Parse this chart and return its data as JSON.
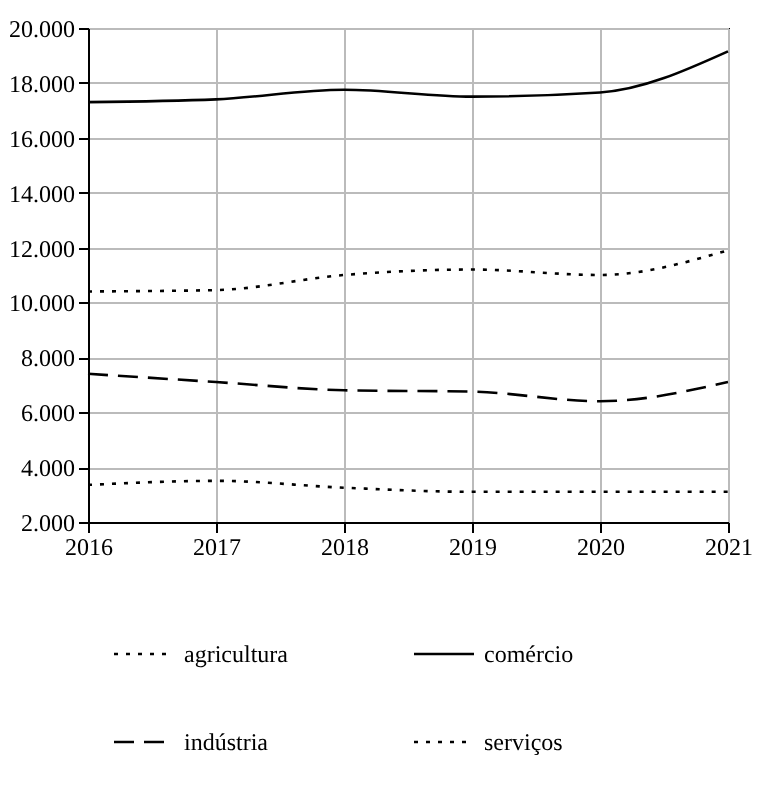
{
  "chart_data": {
    "type": "line",
    "x": [
      2016,
      2017,
      2018,
      2019,
      2020,
      2021
    ],
    "xlim": [
      2016,
      2021
    ],
    "xticks": [
      2016,
      2017,
      2018,
      2019,
      2020,
      2021
    ],
    "ylim": [
      2000,
      20000
    ],
    "yticks": [
      {
        "value": 2000,
        "label": "2.000"
      },
      {
        "value": 4000,
        "label": "4.000"
      },
      {
        "value": 6000,
        "label": "6.000"
      },
      {
        "value": 8000,
        "label": "8.000"
      },
      {
        "value": 10000,
        "label": "10.000"
      },
      {
        "value": 12000,
        "label": "12.000"
      },
      {
        "value": 14000,
        "label": "14.000"
      },
      {
        "value": 16000,
        "label": "16.000"
      },
      {
        "value": 18000,
        "label": "18.000"
      },
      {
        "value": 20000,
        "label": "20.000"
      }
    ],
    "grid": true,
    "legend": "bottom",
    "series": [
      {
        "name": "agricultura",
        "color": "#000000",
        "line_style": "dotted",
        "values": [
          3350,
          3500,
          3250,
          3100,
          3100,
          3100
        ]
      },
      {
        "name": "comércio",
        "color": "#000000",
        "line_style": "solid",
        "values": [
          17300,
          17400,
          17750,
          17500,
          17650,
          19150
        ]
      },
      {
        "name": "indústria",
        "color": "#000000",
        "line_style": "dashed",
        "values": [
          7400,
          7100,
          6800,
          6750,
          6400,
          7100
        ]
      },
      {
        "name": "serviços",
        "color": "#000000",
        "line_style": "dotted",
        "values": [
          10400,
          10450,
          11000,
          11200,
          11000,
          11900
        ]
      }
    ]
  }
}
